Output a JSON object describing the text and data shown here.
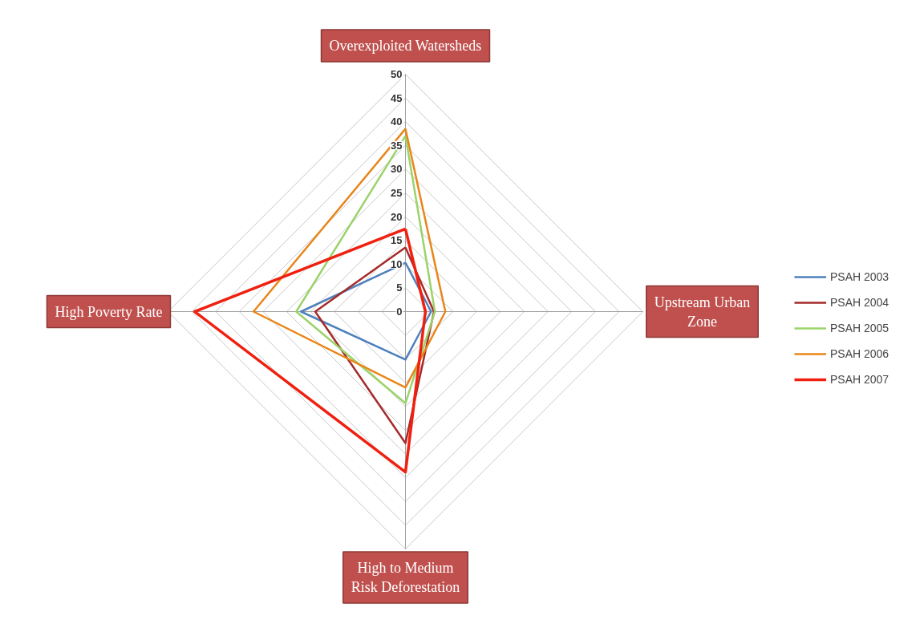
{
  "chart_data": {
    "type": "radar",
    "categories": [
      "Overexploited Watersheds",
      "Upstream Urban\nZone",
      "High to Medium\nRisk Deforestation",
      "High Poverty Rate"
    ],
    "ylim": [
      0,
      50
    ],
    "yticks": [
      0,
      5,
      10,
      15,
      20,
      25,
      30,
      35,
      40,
      45,
      50
    ],
    "grid": true,
    "legend": "right",
    "series": [
      {
        "name": "PSAH 2003",
        "color": "#4f81bd",
        "values": [
          10.3,
          5.4,
          10.1,
          22
        ]
      },
      {
        "name": "PSAH 2004",
        "color": "#a52a2a",
        "values": [
          13.5,
          6,
          27.7,
          19
        ]
      },
      {
        "name": "PSAH 2005",
        "color": "#9bd36a",
        "values": [
          37,
          6.2,
          19.3,
          23
        ]
      },
      {
        "name": "PSAH 2006",
        "color": "#e8861a",
        "values": [
          38.5,
          8.4,
          16,
          32
        ]
      },
      {
        "name": "PSAH 2007",
        "color": "#f02010",
        "values": [
          17.4,
          4.2,
          33.8,
          44.4
        ]
      }
    ]
  }
}
